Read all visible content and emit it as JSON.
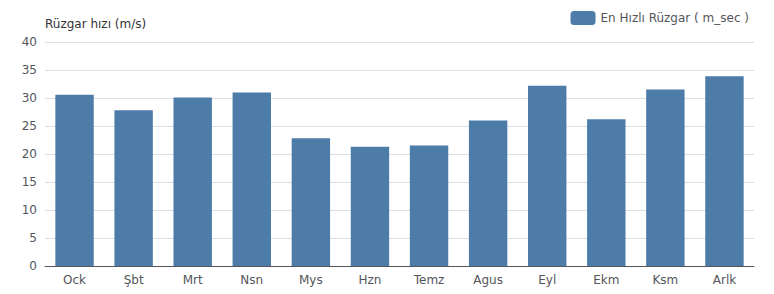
{
  "chart_data": {
    "type": "bar",
    "categories": [
      "Ock",
      "Şbt",
      "Mrt",
      "Nsn",
      "Mys",
      "Hzn",
      "Temz",
      "Agus",
      "Eyl",
      "Ekm",
      "Ksm",
      "Arlk"
    ],
    "series": [
      {
        "name": "En Hızlı Rüzgar ( m_sec )",
        "color": "#4d7ca8",
        "values": [
          30.6,
          27.8,
          30.1,
          31.0,
          22.8,
          21.3,
          21.5,
          26.0,
          32.2,
          26.2,
          31.5,
          33.9
        ]
      }
    ],
    "ylabel": "Rüzgar hızı (m/s)",
    "ylim": [
      0,
      40
    ],
    "yticks": [
      0,
      5,
      10,
      15,
      20,
      25,
      30,
      35,
      40
    ],
    "grid": true,
    "legend": "upper right"
  }
}
